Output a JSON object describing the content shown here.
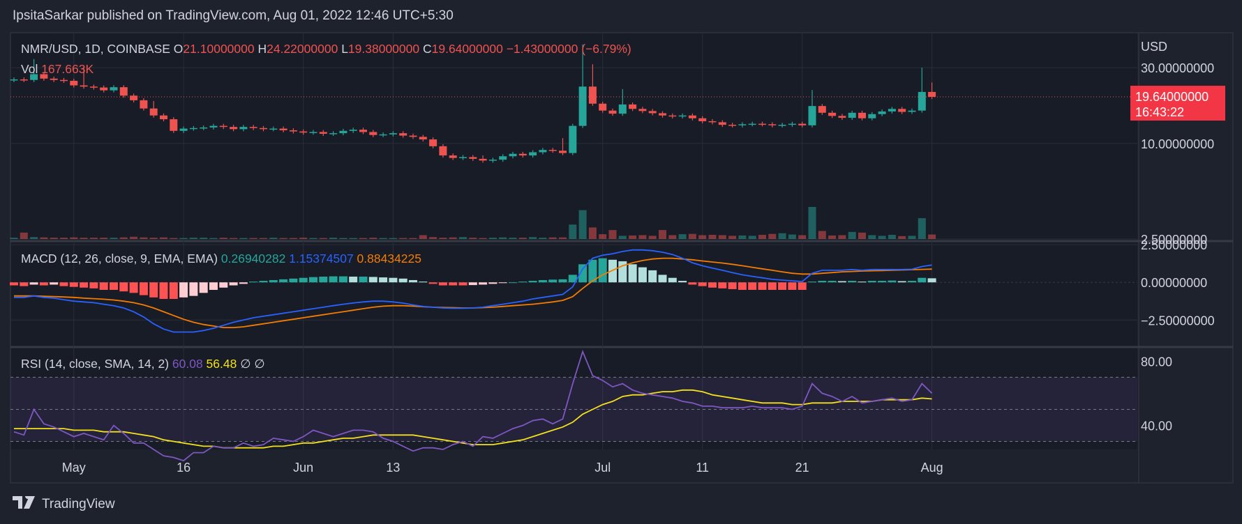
{
  "header": {
    "publisher": "IpsitaSarkar published on TradingView.com, Aug 01, 2022 12:46 UTC+5:30"
  },
  "footer": {
    "brand": "TradingView"
  },
  "colors": {
    "up": "#26a69a",
    "down": "#ef5350",
    "macd": "#2962ff",
    "signal": "#f57c00",
    "rsi": "#7e57c2",
    "rsi_ma": "#f5e11b",
    "price_label_bg": "#f23645"
  },
  "chart_data": {
    "type": "candlestick",
    "symbol": "NMR/USD, 1D, COINBASE",
    "ohlc_legend": {
      "o_label": "O",
      "o": "21.10000000",
      "h_label": "H",
      "h": "24.22000000",
      "l_label": "L",
      "l": "19.38000000",
      "c_label": "C",
      "c": "19.64000000",
      "change": "−1.43000000 (−6.79%)"
    },
    "vol_legend": {
      "label": "Vol",
      "value": "167.663K"
    },
    "currency": "USD",
    "price_ticks": [
      "30.00000000",
      "10.00000000",
      "2.50000000"
    ],
    "price_log_ticks": [
      30,
      10,
      2.5
    ],
    "last_price": "19.64000000",
    "countdown": "16:43:22",
    "price_range_log": [
      2.5,
      45
    ],
    "closes": [
      25.3,
      25.1,
      27.3,
      25.6,
      25.1,
      24.8,
      23.2,
      22.8,
      22.5,
      21.6,
      22.6,
      20.0,
      18.7,
      16.6,
      15.0,
      14.2,
      12.0,
      12.4,
      12.5,
      12.6,
      12.9,
      12.7,
      12.3,
      12.7,
      12.5,
      12.3,
      12.4,
      12.1,
      11.9,
      11.7,
      11.8,
      11.5,
      11.6,
      12.0,
      12.2,
      11.8,
      11.3,
      11.4,
      11.6,
      11.2,
      11.0,
      10.6,
      9.6,
      8.4,
      8.1,
      8.2,
      8.0,
      7.8,
      7.9,
      8.3,
      8.6,
      8.4,
      8.8,
      9.1,
      9.0,
      8.7,
      12.9,
      22.8,
      17.8,
      16.1,
      15.4,
      17.6,
      16.5,
      16.0,
      15.5,
      15.0,
      14.8,
      15.0,
      14.4,
      13.8,
      13.6,
      13.1,
      13.0,
      13.2,
      13.3,
      13.2,
      13.0,
      13.1,
      13.3,
      13.0,
      17.2,
      15.6,
      14.9,
      14.5,
      15.6,
      14.4,
      15.3,
      15.9,
      16.5,
      15.8,
      16.1,
      21.1,
      19.64
    ],
    "volumes": [
      4,
      20,
      6,
      5,
      4,
      4,
      5,
      4,
      4,
      4,
      4,
      5,
      7,
      5,
      4,
      5,
      3,
      3,
      4,
      4,
      3,
      4,
      3,
      3,
      3,
      3,
      4,
      3,
      3,
      4,
      3,
      3,
      4,
      3,
      3,
      3,
      4,
      3,
      3,
      3,
      3,
      12,
      6,
      4,
      5,
      6,
      4,
      3,
      4,
      5,
      4,
      4,
      6,
      4,
      5,
      5,
      45,
      90,
      36,
      15,
      28,
      10,
      11,
      12,
      10,
      28,
      12,
      15,
      16,
      12,
      13,
      12,
      10,
      11,
      10,
      13,
      16,
      18,
      14,
      12,
      100,
      25,
      11,
      12,
      22,
      20,
      12,
      10,
      13,
      9,
      10,
      65,
      14
    ],
    "vol_max": 100,
    "high_spikes": [
      {
        "i": 2,
        "h": 34
      },
      {
        "i": 7,
        "h": 30.5
      },
      {
        "i": 57,
        "h": 42
      },
      {
        "i": 58,
        "h": 31.5
      },
      {
        "i": 61,
        "h": 22
      },
      {
        "i": 80,
        "h": 21.7
      },
      {
        "i": 91,
        "h": 30
      },
      {
        "i": 92,
        "h": 24.2
      },
      {
        "i": 14,
        "h": 18.5
      },
      {
        "i": 47,
        "h": 8.4
      },
      {
        "i": 55,
        "h": 10.8
      }
    ],
    "x_ticks": [
      {
        "label": "May",
        "i": 6
      },
      {
        "label": "16",
        "i": 17
      },
      {
        "label": "Jun",
        "i": 29
      },
      {
        "label": "13",
        "i": 38
      },
      {
        "label": "Jul",
        "i": 59
      },
      {
        "label": "11",
        "i": 69
      },
      {
        "label": "21",
        "i": 79
      },
      {
        "label": "Aug",
        "i": 92
      }
    ],
    "macd": {
      "title": "MACD (12, 26, close, 9, EMA, EMA)",
      "hist_value": "0.26940282",
      "macd_value": "1.15374507",
      "signal_value": "0.88434225",
      "ticks": [
        2.5,
        0.0,
        -2.5
      ],
      "tick_labels": [
        "2.50000000",
        "0.00000000",
        "−2.50000000"
      ],
      "range": [
        -4.2,
        2.6
      ],
      "hist": [
        -0.2,
        -0.25,
        -0.15,
        -0.2,
        -0.15,
        -0.25,
        -0.3,
        -0.35,
        -0.4,
        -0.5,
        -0.5,
        -0.6,
        -0.7,
        -0.85,
        -1.0,
        -1.1,
        -1.1,
        -1.0,
        -0.9,
        -0.7,
        -0.5,
        -0.35,
        -0.2,
        -0.1,
        0.05,
        0.1,
        0.15,
        0.2,
        0.25,
        0.3,
        0.35,
        0.38,
        0.4,
        0.4,
        0.38,
        0.38,
        0.36,
        0.33,
        0.3,
        0.25,
        0.15,
        0.05,
        -0.1,
        -0.2,
        -0.2,
        -0.2,
        -0.18,
        -0.15,
        -0.1,
        -0.05,
        0.0,
        0.05,
        0.1,
        0.15,
        0.18,
        0.2,
        0.5,
        1.2,
        1.5,
        1.6,
        1.5,
        1.4,
        1.2,
        1.0,
        0.8,
        0.5,
        0.3,
        0.1,
        -0.15,
        -0.25,
        -0.35,
        -0.4,
        -0.45,
        -0.5,
        -0.5,
        -0.5,
        -0.5,
        -0.5,
        -0.5,
        -0.5,
        0.05,
        0.1,
        0.1,
        0.08,
        0.1,
        0.05,
        0.1,
        0.1,
        0.12,
        0.08,
        0.1,
        0.3,
        0.27
      ],
      "macd_line": [
        -1.0,
        -1.0,
        -0.9,
        -1.0,
        -1.05,
        -1.15,
        -1.25,
        -1.3,
        -1.35,
        -1.45,
        -1.55,
        -1.7,
        -1.95,
        -2.3,
        -2.75,
        -3.1,
        -3.3,
        -3.3,
        -3.3,
        -3.2,
        -3.05,
        -2.85,
        -2.65,
        -2.5,
        -2.35,
        -2.25,
        -2.15,
        -2.05,
        -1.95,
        -1.85,
        -1.75,
        -1.65,
        -1.55,
        -1.45,
        -1.37,
        -1.3,
        -1.25,
        -1.25,
        -1.3,
        -1.38,
        -1.5,
        -1.6,
        -1.65,
        -1.7,
        -1.72,
        -1.72,
        -1.7,
        -1.65,
        -1.55,
        -1.45,
        -1.35,
        -1.25,
        -1.1,
        -1.0,
        -0.9,
        -0.8,
        -0.3,
        0.9,
        1.6,
        1.8,
        1.9,
        2.05,
        2.15,
        2.15,
        2.1,
        2.0,
        1.85,
        1.6,
        1.3,
        1.1,
        0.95,
        0.8,
        0.65,
        0.5,
        0.4,
        0.3,
        0.2,
        0.15,
        0.1,
        0.05,
        0.6,
        0.8,
        0.8,
        0.8,
        0.85,
        0.8,
        0.85,
        0.85,
        0.85,
        0.85,
        0.87,
        1.05,
        1.15
      ],
      "signal_line": [
        -0.9,
        -0.9,
        -0.9,
        -0.92,
        -0.95,
        -0.97,
        -1.0,
        -1.05,
        -1.08,
        -1.12,
        -1.17,
        -1.25,
        -1.35,
        -1.5,
        -1.7,
        -1.95,
        -2.2,
        -2.45,
        -2.65,
        -2.8,
        -2.9,
        -3.0,
        -3.0,
        -2.95,
        -2.85,
        -2.75,
        -2.65,
        -2.55,
        -2.45,
        -2.35,
        -2.25,
        -2.15,
        -2.05,
        -1.95,
        -1.85,
        -1.75,
        -1.65,
        -1.58,
        -1.55,
        -1.55,
        -1.58,
        -1.62,
        -1.65,
        -1.67,
        -1.68,
        -1.7,
        -1.7,
        -1.68,
        -1.65,
        -1.6,
        -1.55,
        -1.5,
        -1.45,
        -1.38,
        -1.3,
        -1.2,
        -0.95,
        -0.4,
        0.1,
        0.5,
        0.8,
        1.1,
        1.3,
        1.45,
        1.55,
        1.6,
        1.6,
        1.55,
        1.5,
        1.42,
        1.35,
        1.28,
        1.2,
        1.1,
        1.0,
        0.9,
        0.8,
        0.7,
        0.6,
        0.55,
        0.55,
        0.6,
        0.65,
        0.7,
        0.72,
        0.75,
        0.77,
        0.78,
        0.8,
        0.82,
        0.84,
        0.86,
        0.88
      ]
    },
    "rsi": {
      "title": "RSI (14, close, SMA, 14, 2)",
      "rsi_value": "60.08",
      "ma_value": "56.48",
      "extra1": "∅",
      "extra2": "∅",
      "ticks": [
        80,
        40
      ],
      "tick_labels": [
        "80.00",
        "40.00"
      ],
      "band_upper": 70,
      "band_mid": 50,
      "band_lower": 30,
      "range": [
        25,
        88
      ],
      "rsi_line": [
        36,
        34,
        50,
        41,
        39,
        36,
        33,
        35,
        33,
        31,
        40,
        35,
        29,
        29,
        25,
        21,
        20,
        18,
        23,
        23,
        27,
        26,
        26,
        29,
        27,
        28,
        32,
        31,
        30,
        33,
        37,
        35,
        33,
        35,
        37,
        37,
        36,
        32,
        30,
        27,
        24,
        26,
        26,
        25,
        28,
        30,
        27,
        33,
        32,
        35,
        38,
        40,
        43,
        44,
        41,
        44,
        66,
        86,
        71,
        68,
        64,
        66,
        62,
        60,
        59,
        58,
        57,
        55,
        54,
        52,
        52,
        51,
        51,
        51,
        52,
        51,
        51,
        51,
        50,
        52,
        66,
        60,
        58,
        55,
        58,
        54,
        55,
        56,
        57,
        55,
        56,
        66,
        60.08
      ],
      "rsi_ma": [
        38,
        38,
        38,
        38,
        38,
        38,
        37,
        37,
        37,
        36,
        36,
        36,
        35,
        34,
        33,
        31,
        30,
        29,
        28,
        27,
        27,
        26,
        26,
        26,
        26,
        26,
        27,
        27,
        28,
        29,
        29,
        30,
        31,
        32,
        32,
        33,
        34,
        34,
        34,
        34,
        34,
        33,
        32,
        31,
        30,
        29,
        28,
        28,
        28,
        29,
        30,
        31,
        33,
        35,
        37,
        39,
        42,
        47,
        50,
        53,
        55,
        58,
        59,
        59,
        60,
        61,
        61,
        62,
        62,
        61,
        59,
        58,
        57,
        56,
        55,
        54,
        54,
        54,
        53,
        53,
        54,
        54,
        54,
        55,
        55,
        55,
        55,
        56,
        56,
        56,
        56,
        57,
        56.48
      ]
    }
  }
}
